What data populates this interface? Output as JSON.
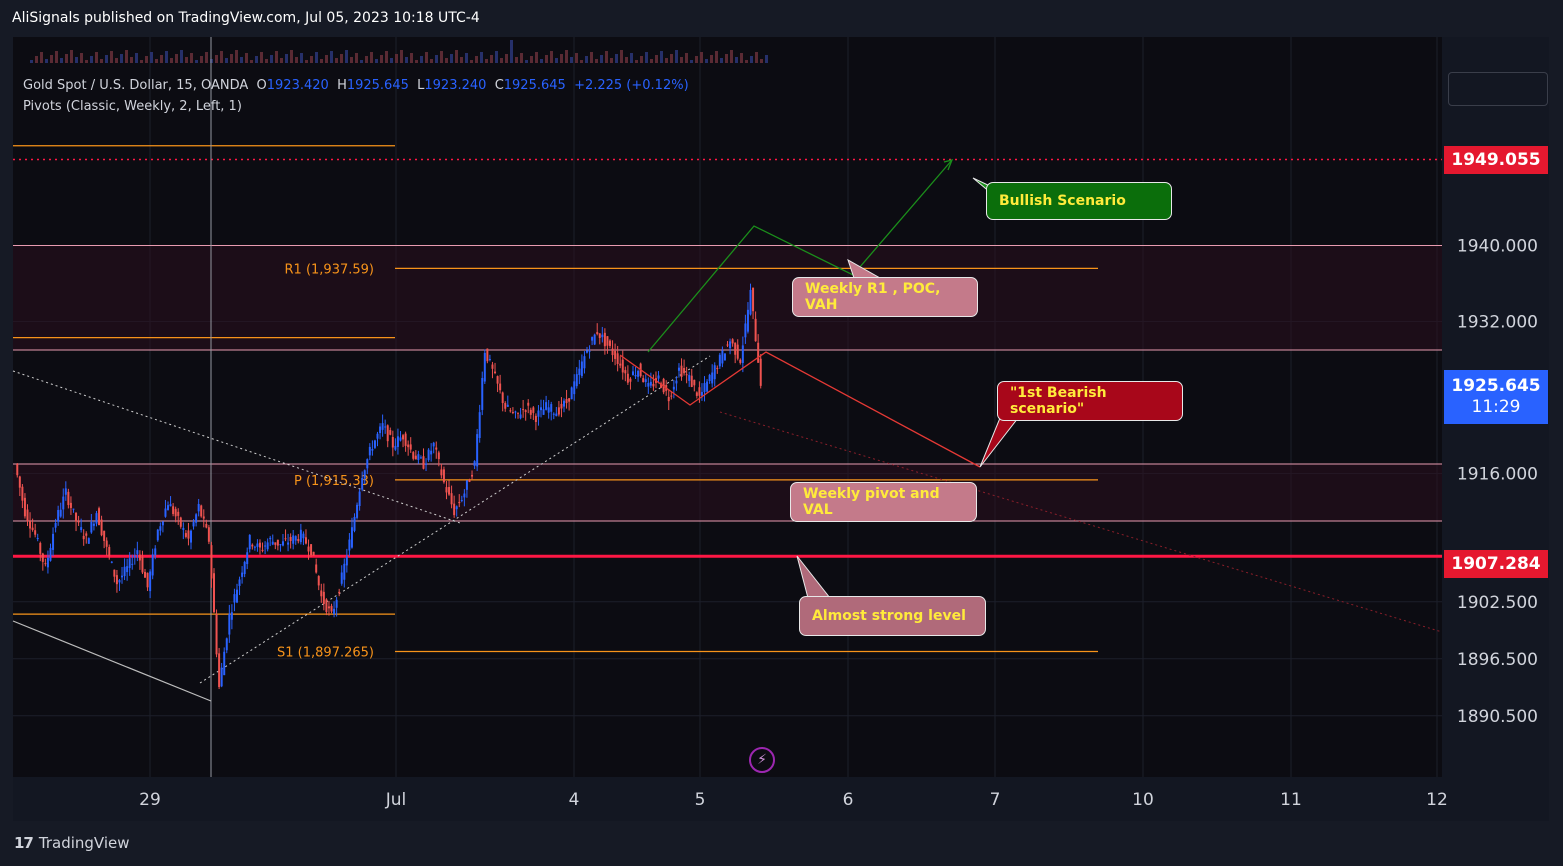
{
  "header": {
    "publisher": "AliSignals published on TradingView.com, Jul 05, 2023 10:18 UTC-4"
  },
  "legend": {
    "symbol": "Gold Spot / U.S. Dollar, 15, OANDA",
    "o_label": "O",
    "o_value": "1923.420",
    "h_label": "H",
    "h_value": "1925.645",
    "l_label": "L",
    "l_value": "1923.240",
    "c_label": "C",
    "c_value": "1925.645",
    "change": "+2.225 (+0.12%)",
    "indicator": "Pivots (Classic, Weekly, 2, Left, 1)"
  },
  "footer": {
    "brand": "TradingView",
    "logo": "17"
  },
  "price_tags": {
    "resistance": "1949.055",
    "current": "1925.645",
    "countdown": "11:29",
    "support": "1907.284"
  },
  "callouts": {
    "bullish": "Bullish Scenario",
    "r1": "Weekly R1 , POC, VAH",
    "bearish": "\"1st Bearish scenario\"",
    "pivot": "Weekly pivot and VAL",
    "strong": "Almost strong level"
  },
  "colors": {
    "background": "#0c0c12",
    "pivot_line": "#f7931a",
    "resistance": "#ff1744",
    "bullish": "#1b8f1b",
    "bearish": "#c62828",
    "callout_pink": "#c47a8a",
    "candle_up": "#2962ff",
    "candle_down": "#ef5350"
  },
  "chart_data": {
    "type": "candlestick",
    "y_axis": {
      "ticks": [
        1940.0,
        1932.0,
        1916.0,
        1902.5,
        1896.5,
        1890.5
      ],
      "tick_labels": [
        "1940.000",
        "1932.000",
        "1916.000",
        "1902.500",
        "1896.500",
        "1890.500"
      ],
      "range": [
        1885.5,
        1954.0
      ]
    },
    "x_axis": {
      "tick_labels": [
        "29",
        "Jul",
        "4",
        "5",
        "6",
        "7",
        "10",
        "11",
        "12"
      ]
    },
    "pivots": [
      {
        "label": "R1 (1,937.59)",
        "value": 1937.59
      },
      {
        "label": "P (1,915.33)",
        "value": 1915.33
      },
      {
        "label": "S1 (1,897.265)",
        "value": 1897.265
      }
    ],
    "prior_pivot_levels": [
      1950.5,
      1930.3,
      1901.2
    ],
    "value_area_bands": [
      [
        1929.0,
        1940.0
      ],
      [
        1911.0,
        1917.0
      ]
    ],
    "horizontal_levels": [
      1949.055,
      1907.284
    ],
    "price_series": [
      1917.0,
      1912.0,
      1909.5,
      1906.0,
      1911.0,
      1914.0,
      1911.0,
      1909.0,
      1912.0,
      1908.0,
      1904.5,
      1906.0,
      1908.0,
      1904.0,
      1910.0,
      1913.0,
      1911.0,
      1909.0,
      1912.5,
      1909.0,
      1893.5,
      1901.0,
      1905.0,
      1909.0,
      1908.0,
      1909.0,
      1908.5,
      1909.0,
      1909.5,
      1908.0,
      1903.0,
      1901.0,
      1905.0,
      1910.0,
      1916.0,
      1919.0,
      1921.0,
      1919.0,
      1920.0,
      1918.0,
      1917.0,
      1919.0,
      1915.0,
      1912.0,
      1914.0,
      1917.0,
      1929.0,
      1926.0,
      1923.0,
      1922.0,
      1923.0,
      1922.0,
      1923.0,
      1922.5,
      1923.5,
      1926.0,
      1929.0,
      1931.0,
      1929.5,
      1928.0,
      1926.0,
      1927.0,
      1925.0,
      1926.0,
      1924.0,
      1927.0,
      1926.0,
      1924.0,
      1926.0,
      1928.0,
      1930.0,
      1928.0,
      1935.0,
      1925.645
    ]
  }
}
